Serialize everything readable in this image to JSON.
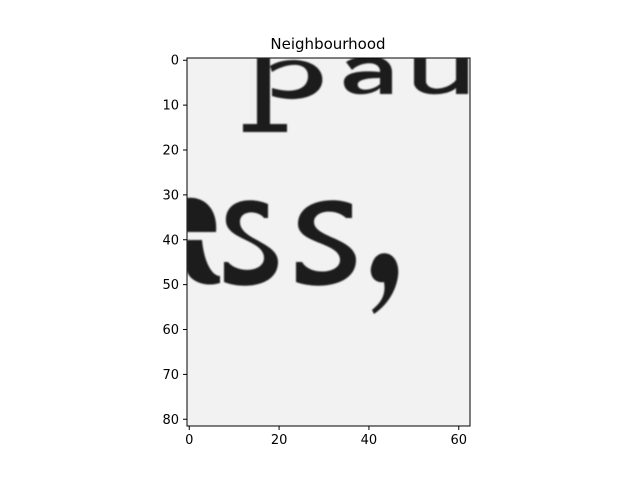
{
  "figure": {
    "title": "Neighbourhood"
  },
  "image": {
    "description_type": "grayscale-scan-crop",
    "rows": 82,
    "cols": 63,
    "visible_text_fragments": [
      "pau",
      "ess,"
    ],
    "colors": {
      "paper": "#ebebeb",
      "ink": "#1c1c1c",
      "axes": "#000000"
    }
  },
  "axes": {
    "x_ticks": [
      "0",
      "20",
      "40",
      "60"
    ],
    "y_ticks": [
      "0",
      "10",
      "20",
      "30",
      "40",
      "50",
      "60",
      "70",
      "80"
    ],
    "x_tick_values": [
      0,
      20,
      40,
      60
    ],
    "y_tick_values": [
      0,
      10,
      20,
      30,
      40,
      50,
      60,
      70,
      80
    ],
    "x_range": [
      -0.5,
      62.5
    ],
    "y_range": [
      81.5,
      -0.5
    ]
  }
}
